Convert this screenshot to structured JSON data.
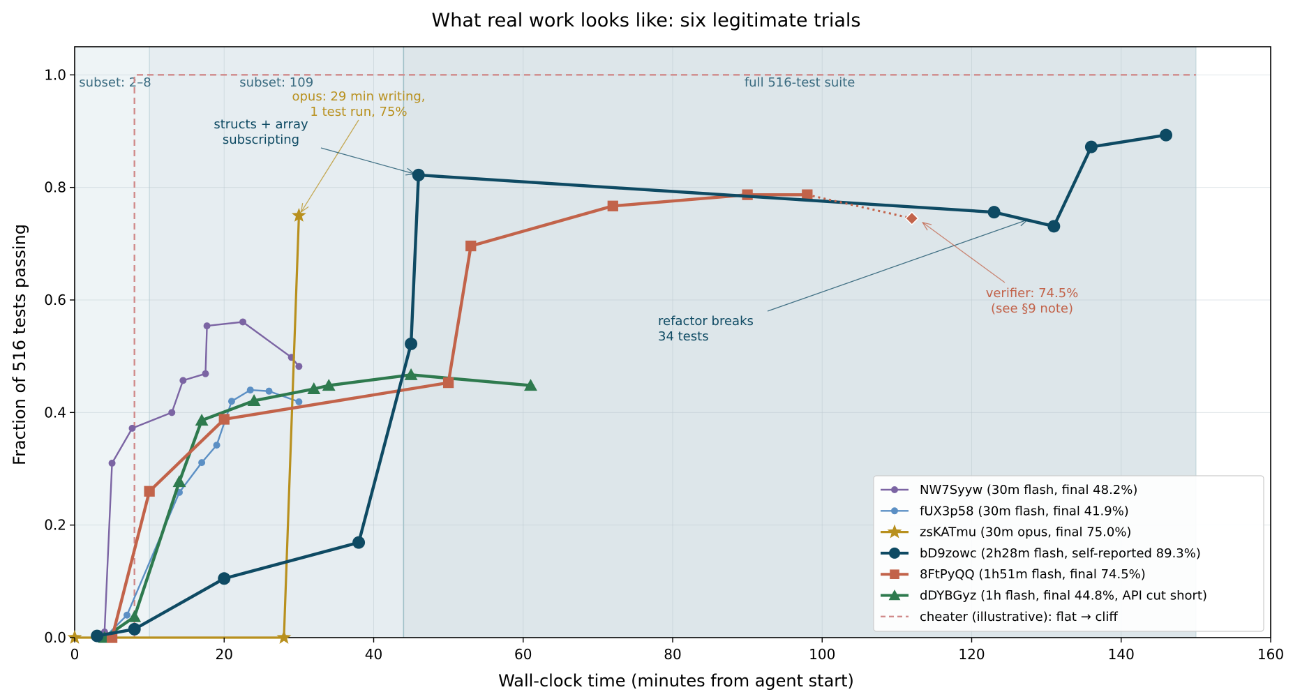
{
  "chart_data": {
    "type": "line",
    "title": "What real work looks like: six legitimate trials",
    "xlabel": "Wall-clock time (minutes from agent start)",
    "ylabel": "Fraction of 516 tests passing",
    "xlim": [
      0,
      160
    ],
    "ylim": [
      0,
      1.05
    ],
    "xticks": [
      "0",
      "20",
      "40",
      "60",
      "80",
      "100",
      "120",
      "140",
      "160"
    ],
    "yticks": [
      "0.0",
      "0.2",
      "0.4",
      "0.6",
      "0.8",
      "1.0"
    ],
    "grid": true,
    "legend_position": "lower-right",
    "regions": [
      {
        "label": "subset: 2–8",
        "x_range": [
          0,
          10
        ],
        "color": "#eef4f6"
      },
      {
        "label": "subset: 109",
        "x_range": [
          10,
          44
        ],
        "color": "#e6edf1"
      },
      {
        "label": "full 516-test suite",
        "x_range": [
          44,
          150
        ],
        "color": "#dde6ea"
      }
    ],
    "series": [
      {
        "name": "NW7Syyw  (30m flash, final 48.2%)",
        "color": "#7b64a3",
        "marker": "circle",
        "width": "thin",
        "x": [
          4,
          5,
          7.7,
          13,
          14.5,
          17.5,
          17.7,
          22.5,
          29,
          30
        ],
        "y": [
          0.01,
          0.31,
          0.372,
          0.4,
          0.457,
          0.469,
          0.554,
          0.561,
          0.498,
          0.482
        ]
      },
      {
        "name": "fUX3p58  (30m flash, final 41.9%)",
        "color": "#5b8fc4",
        "marker": "circle",
        "width": "thin",
        "x": [
          4,
          7,
          14,
          17,
          19,
          21,
          23.5,
          26,
          30
        ],
        "y": [
          0.0,
          0.04,
          0.258,
          0.311,
          0.342,
          0.42,
          0.44,
          0.438,
          0.419
        ]
      },
      {
        "name": "zsKATmu  (30m opus, final 75.0%)",
        "color": "#b8901e",
        "marker": "star",
        "width": "medium",
        "x": [
          0,
          28,
          30
        ],
        "y": [
          0.0,
          0.0,
          0.75
        ]
      },
      {
        "name": "bD9zowc  (2h28m flash, self-reported 89.3%)",
        "color": "#0e4a63",
        "marker": "circle",
        "width": "thick",
        "x": [
          3,
          8,
          20,
          38,
          45,
          46,
          123,
          131,
          136,
          146
        ],
        "y": [
          0.003,
          0.015,
          0.105,
          0.169,
          0.522,
          0.822,
          0.756,
          0.731,
          0.872,
          0.893
        ]
      },
      {
        "name": "8FtPyQQ  (1h51m flash, final 74.5%)",
        "color": "#c2634a",
        "marker": "square",
        "width": "thick",
        "x": [
          5,
          10,
          20,
          50,
          53,
          72,
          90,
          98
        ],
        "y": [
          0.0,
          0.26,
          0.388,
          0.453,
          0.696,
          0.767,
          0.787,
          0.787
        ]
      },
      {
        "name": "dDYBGyz  (1h flash, final 44.8%, API cut short)",
        "color": "#2e7a4e",
        "marker": "triangle",
        "width": "thick",
        "x": [
          4,
          8,
          14,
          17,
          24,
          32,
          34,
          45,
          61
        ],
        "y": [
          0.0,
          0.037,
          0.277,
          0.386,
          0.421,
          0.442,
          0.448,
          0.467,
          0.448
        ]
      },
      {
        "name": "cheater (illustrative): flat → cliff",
        "color": "#d08a8a",
        "marker": "none",
        "width": "dashed",
        "x": [
          8,
          8,
          150
        ],
        "y": [
          0.0,
          1.0,
          1.0
        ]
      }
    ],
    "extra_marks": [
      {
        "type": "dotted-line",
        "color": "#c2634a",
        "x": [
          98,
          112
        ],
        "y": [
          0.787,
          0.745
        ]
      },
      {
        "type": "diamond",
        "color": "#c2634a",
        "x": 112,
        "y": 0.745
      }
    ],
    "annotations": [
      {
        "lines": [
          "opus: 29 min writing,",
          "1 test run, 75%"
        ],
        "color": "#b8901e",
        "target": [
          30,
          0.75
        ]
      },
      {
        "lines": [
          "structs + array",
          "subscripting"
        ],
        "color": "#0e4a63",
        "target": [
          46,
          0.822
        ]
      },
      {
        "lines": [
          "refactor breaks",
          "34 tests"
        ],
        "color": "#0e4a63",
        "target": [
          128,
          0.745
        ]
      },
      {
        "lines": [
          "verifier: 74.5%",
          "(see §9 note)"
        ],
        "color": "#c2634a",
        "target": [
          113,
          0.742
        ]
      }
    ]
  }
}
